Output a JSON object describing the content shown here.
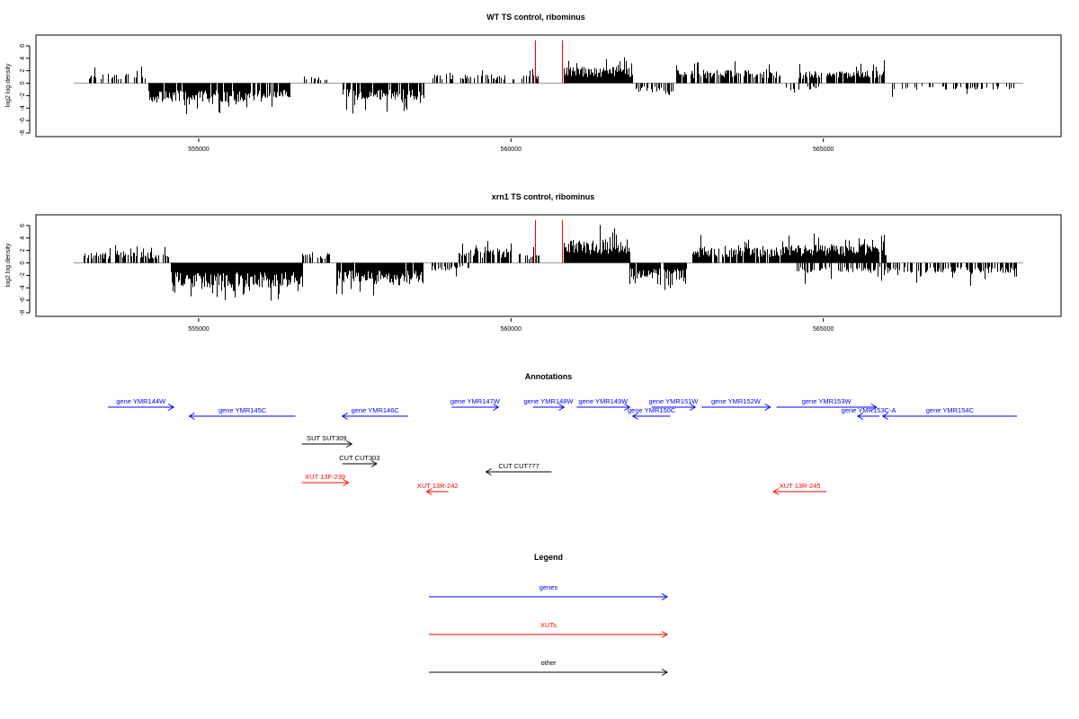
{
  "colors": {
    "genes": "#0000ff",
    "xuts": "#ff0000",
    "other": "#000000",
    "bar": "#000000",
    "marker": "#ff0000",
    "baseline": "#9a9a9a"
  },
  "chart_data": [
    {
      "type": "bar",
      "title": "WT TS control, ribominus",
      "ylabel": "log2 log density",
      "xlim": [
        553000,
        568200
      ],
      "ylim": [
        -8,
        7
      ],
      "yticks": [
        -8,
        -6,
        -4,
        -2,
        0,
        2,
        4,
        6
      ],
      "xticks": [
        555000,
        560000,
        565000
      ],
      "xtick_labels": [
        "555000",
        "560000",
        "565000"
      ],
      "markers": [
        560380,
        560820
      ],
      "segments": [
        {
          "x0": 553230,
          "x1": 554150,
          "sign": 1,
          "base": 1.3,
          "amp": 1.4,
          "density": 0.35,
          "seed": 11
        },
        {
          "x0": 554200,
          "x1": 555800,
          "sign": -1,
          "base": 2.4,
          "amp": 2.4,
          "density": 0.9,
          "seed": 12
        },
        {
          "x0": 555800,
          "x1": 556450,
          "sign": -1,
          "base": 2.0,
          "amp": 2.0,
          "density": 0.75,
          "seed": 13
        },
        {
          "x0": 556650,
          "x1": 557050,
          "sign": 1,
          "base": 0.9,
          "amp": 0.7,
          "density": 0.25,
          "seed": 14
        },
        {
          "x0": 557300,
          "x1": 558600,
          "sign": -1,
          "base": 2.2,
          "amp": 2.4,
          "density": 0.8,
          "seed": 15
        },
        {
          "x0": 558750,
          "x1": 559700,
          "sign": 1,
          "base": 1.2,
          "amp": 1.6,
          "density": 0.3,
          "seed": 16
        },
        {
          "x0": 559700,
          "x1": 560450,
          "sign": 1,
          "base": 1.0,
          "amp": 1.2,
          "density": 0.25,
          "seed": 17
        },
        {
          "x0": 560850,
          "x1": 561950,
          "sign": 1,
          "base": 2.1,
          "amp": 2.5,
          "density": 1.0,
          "seed": 18
        },
        {
          "x0": 561950,
          "x1": 562600,
          "sign": -1,
          "base": 1.2,
          "amp": 1.4,
          "density": 0.45,
          "seed": 19
        },
        {
          "x0": 562650,
          "x1": 564300,
          "sign": 1,
          "base": 1.7,
          "amp": 2.0,
          "density": 0.65,
          "seed": 20
        },
        {
          "x0": 564300,
          "x1": 565000,
          "sign": -1,
          "base": 0.9,
          "amp": 1.2,
          "density": 0.25,
          "seed": 21
        },
        {
          "x0": 564600,
          "x1": 566000,
          "sign": 1,
          "base": 1.6,
          "amp": 2.2,
          "density": 0.7,
          "seed": 22
        },
        {
          "x0": 566000,
          "x1": 568100,
          "sign": -1,
          "base": 0.9,
          "amp": 1.6,
          "density": 0.25,
          "seed": 23
        }
      ]
    },
    {
      "type": "bar",
      "title": "xrn1 TS control, ribominus",
      "ylabel": "log2 log density",
      "xlim": [
        553000,
        568200
      ],
      "ylim": [
        -8,
        7
      ],
      "yticks": [
        -8,
        -6,
        -4,
        -2,
        0,
        2,
        4,
        6
      ],
      "xticks": [
        555000,
        560000,
        565000
      ],
      "xtick_labels": [
        "555000",
        "560000",
        "565000"
      ],
      "markers": [
        560380,
        560820
      ],
      "segments": [
        {
          "x0": 553150,
          "x1": 554550,
          "sign": 1,
          "base": 1.4,
          "amp": 1.6,
          "density": 0.6,
          "seed": 31
        },
        {
          "x0": 554550,
          "x1": 556650,
          "sign": -1,
          "base": 3.2,
          "amp": 3.2,
          "density": 1.0,
          "seed": 32
        },
        {
          "x0": 556650,
          "x1": 557150,
          "sign": 1,
          "base": 1.4,
          "amp": 1.7,
          "density": 0.45,
          "seed": 33
        },
        {
          "x0": 557200,
          "x1": 558600,
          "sign": -1,
          "base": 2.6,
          "amp": 2.6,
          "density": 0.9,
          "seed": 34
        },
        {
          "x0": 558700,
          "x1": 559350,
          "sign": -1,
          "base": 1.0,
          "amp": 1.4,
          "density": 0.3,
          "seed": 35
        },
        {
          "x0": 559150,
          "x1": 560000,
          "sign": 1,
          "base": 1.9,
          "amp": 2.0,
          "density": 0.7,
          "seed": 36
        },
        {
          "x0": 560000,
          "x1": 560450,
          "sign": 1,
          "base": 1.2,
          "amp": 1.5,
          "density": 0.4,
          "seed": 37
        },
        {
          "x0": 560850,
          "x1": 561900,
          "sign": 1,
          "base": 3.0,
          "amp": 3.4,
          "density": 1.0,
          "seed": 38
        },
        {
          "x0": 561900,
          "x1": 562800,
          "sign": -1,
          "base": 2.0,
          "amp": 2.2,
          "density": 0.9,
          "seed": 39
        },
        {
          "x0": 562900,
          "x1": 564300,
          "sign": 1,
          "base": 2.0,
          "amp": 2.6,
          "density": 0.85,
          "seed": 40
        },
        {
          "x0": 564300,
          "x1": 566000,
          "sign": 1,
          "base": 2.4,
          "amp": 2.8,
          "density": 0.95,
          "seed": 41
        },
        {
          "x0": 564500,
          "x1": 568100,
          "sign": -1,
          "base": 1.3,
          "amp": 2.2,
          "density": 0.45,
          "seed": 42
        }
      ]
    }
  ],
  "annotations": {
    "title": "Annotations",
    "features": [
      {
        "label": "gene YMR144W",
        "type": "genes",
        "strand": "+",
        "start": 553550,
        "end": 554600,
        "row": 0
      },
      {
        "label": "gene YMR145C",
        "type": "genes",
        "strand": "-",
        "start": 554850,
        "end": 556550,
        "row": 1
      },
      {
        "label": "gene YMR146C",
        "type": "genes",
        "strand": "-",
        "start": 557300,
        "end": 558350,
        "row": 1
      },
      {
        "label": "gene YMR147W",
        "type": "genes",
        "strand": "+",
        "start": 559050,
        "end": 559800,
        "row": 0
      },
      {
        "label": "gene YMR148W",
        "type": "genes",
        "strand": "+",
        "start": 560350,
        "end": 560850,
        "row": 0
      },
      {
        "label": "gene YMR149W",
        "type": "genes",
        "strand": "+",
        "start": 561050,
        "end": 561900,
        "row": 0
      },
      {
        "label": "gene YMR150C",
        "type": "genes",
        "strand": "-",
        "start": 561950,
        "end": 562550,
        "row": 1
      },
      {
        "label": "gene YMR151W",
        "type": "genes",
        "strand": "+",
        "start": 562250,
        "end": 562950,
        "row": 0
      },
      {
        "label": "gene YMR152W",
        "type": "genes",
        "strand": "+",
        "start": 563050,
        "end": 564150,
        "row": 0
      },
      {
        "label": "gene YMR153W",
        "type": "genes",
        "strand": "+",
        "start": 564250,
        "end": 565850,
        "row": 0
      },
      {
        "label": "gene YMR153C-A",
        "type": "genes",
        "strand": "-",
        "start": 565550,
        "end": 565900,
        "row": 1
      },
      {
        "label": "gene YMR154C",
        "type": "genes",
        "strand": "-",
        "start": 565950,
        "end": 568100,
        "row": 1
      },
      {
        "label": "SUT SUT309",
        "type": "other",
        "strand": "+",
        "start": 556650,
        "end": 557450,
        "row": 3
      },
      {
        "label": "CUT CUT303",
        "type": "other",
        "strand": "+",
        "start": 557300,
        "end": 557850,
        "row": 4
      },
      {
        "label": "CUT CUT777",
        "type": "other",
        "strand": "-",
        "start": 559600,
        "end": 560650,
        "row": 5
      },
      {
        "label": "XUT 13F-239",
        "type": "xuts",
        "strand": "+",
        "start": 556650,
        "end": 557400,
        "row": 6
      },
      {
        "label": "XUT 13R-242",
        "type": "xuts",
        "strand": "-",
        "start": 558650,
        "end": 559000,
        "row": 7
      },
      {
        "label": "XUT 13R-245",
        "type": "xuts",
        "strand": "-",
        "start": 564200,
        "end": 565050,
        "row": 7
      }
    ]
  },
  "legend": {
    "title": "Legend",
    "items": [
      {
        "label": "genes",
        "type": "genes"
      },
      {
        "label": "XUTs",
        "type": "xuts"
      },
      {
        "label": "other",
        "type": "other"
      }
    ]
  }
}
